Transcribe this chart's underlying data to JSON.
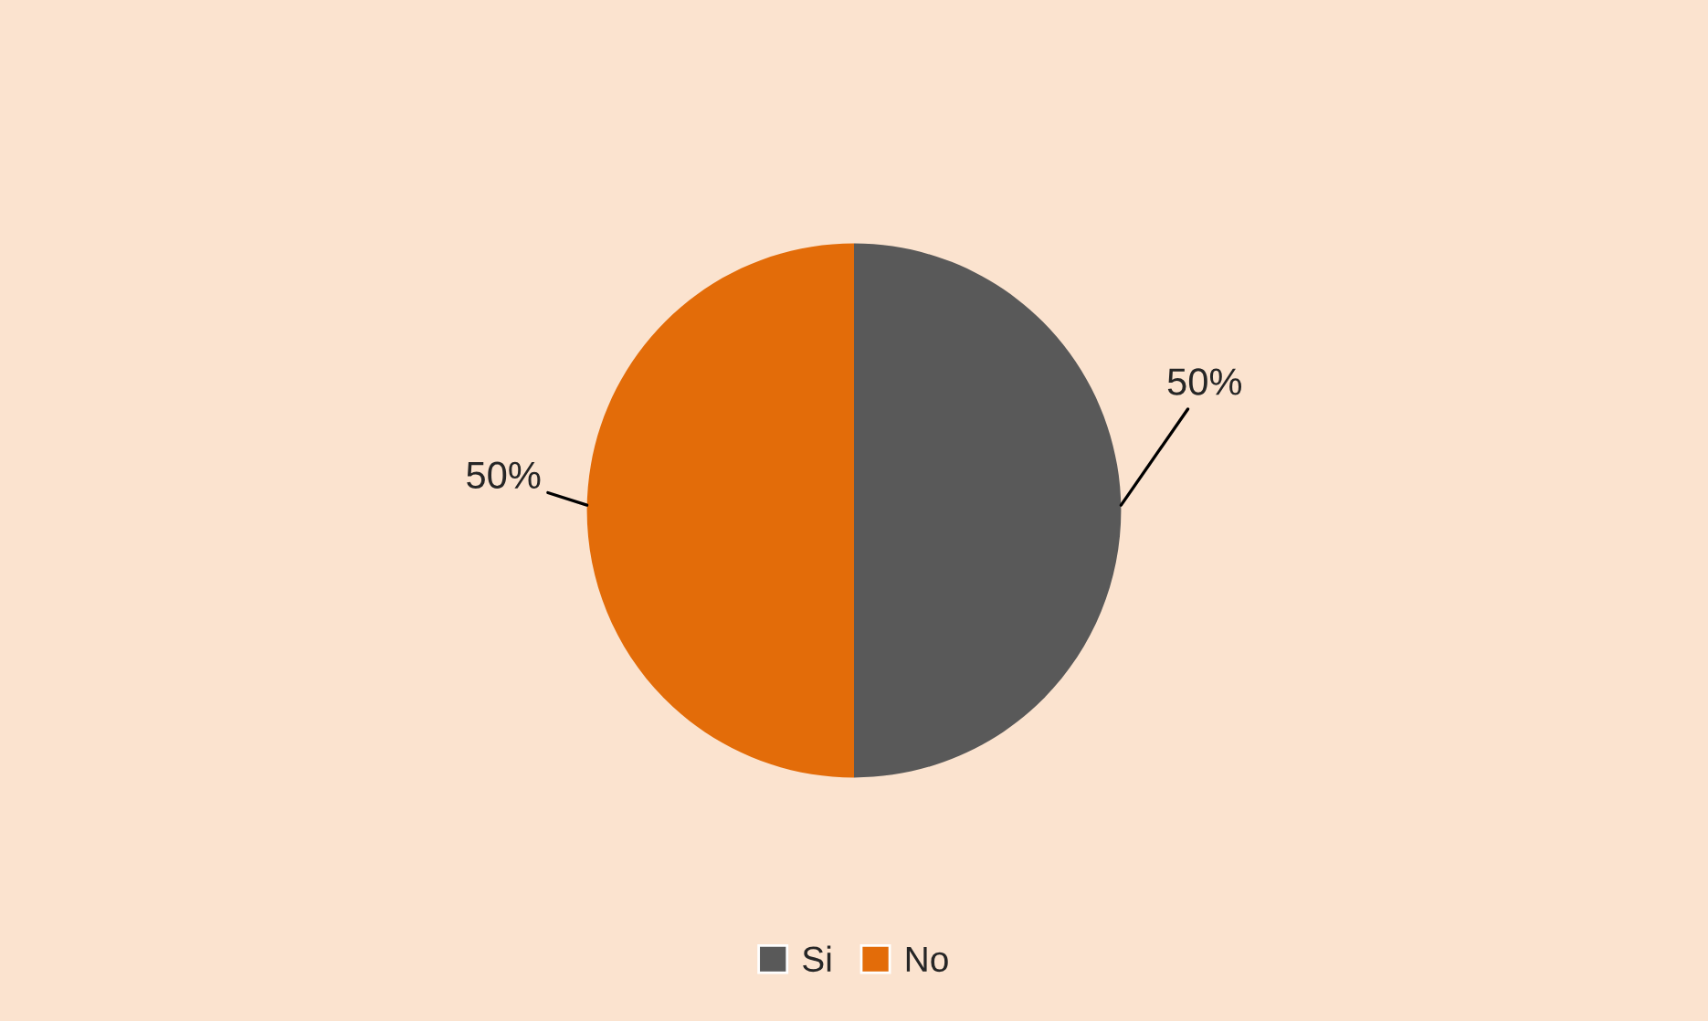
{
  "chart_data": {
    "type": "pie",
    "categories": [
      "Si",
      "No"
    ],
    "values": [
      50,
      50
    ],
    "colors": [
      "#595959",
      "#e36c09"
    ],
    "value_labels": [
      "50%",
      "50%"
    ],
    "legend": "bottom"
  }
}
